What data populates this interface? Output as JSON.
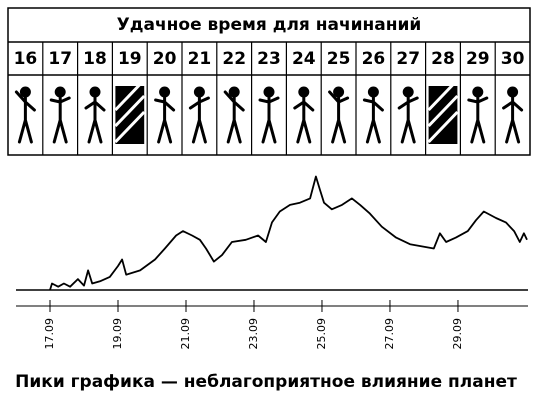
{
  "header": {
    "title": "Удачное время для начинаний"
  },
  "days": [
    "16",
    "17",
    "18",
    "19",
    "20",
    "21",
    "22",
    "23",
    "24",
    "25",
    "26",
    "27",
    "28",
    "29",
    "30"
  ],
  "chart_data": {
    "type": "line",
    "x": [
      17.0,
      17.06,
      17.24,
      17.41,
      17.59,
      17.82,
      18.0,
      18.12,
      18.24,
      18.47,
      18.76,
      19.0,
      19.12,
      19.24,
      19.65,
      20.09,
      20.38,
      20.71,
      20.91,
      21.18,
      21.41,
      21.59,
      21.82,
      22.06,
      22.35,
      22.76,
      23.12,
      23.35,
      23.53,
      23.76,
      24.06,
      24.35,
      24.65,
      24.82,
      24.94,
      25.06,
      25.29,
      25.59,
      25.88,
      26.12,
      26.41,
      26.76,
      27.18,
      27.59,
      28.29,
      28.47,
      28.65,
      28.94,
      29.29,
      29.53,
      29.76,
      30.12,
      30.41,
      30.65,
      30.82,
      30.94,
      31.03
    ],
    "values": [
      0,
      6,
      3,
      6,
      3,
      10,
      4,
      18,
      6,
      8,
      12,
      22,
      28,
      14,
      18,
      28,
      38,
      50,
      54,
      50,
      46,
      38,
      26,
      32,
      44,
      46,
      50,
      44,
      62,
      72,
      78,
      80,
      84,
      104,
      92,
      80,
      74,
      78,
      84,
      78,
      70,
      58,
      48,
      42,
      38,
      52,
      44,
      48,
      54,
      64,
      72,
      66,
      62,
      54,
      44,
      52,
      46
    ],
    "color": "#000000",
    "xlim": [
      16,
      31.06
    ],
    "ylim": [
      0,
      110
    ],
    "xticks": [
      {
        "value": 17,
        "label": "17.09"
      },
      {
        "value": 19,
        "label": "19.09"
      },
      {
        "value": 21,
        "label": "21.09"
      },
      {
        "value": 23,
        "label": "23.09"
      },
      {
        "value": 25,
        "label": "25.09"
      },
      {
        "value": 27,
        "label": "27.09"
      },
      {
        "value": 29,
        "label": "29.09"
      }
    ],
    "caption": "Пики графика — неблагоприятное влияние планет"
  }
}
